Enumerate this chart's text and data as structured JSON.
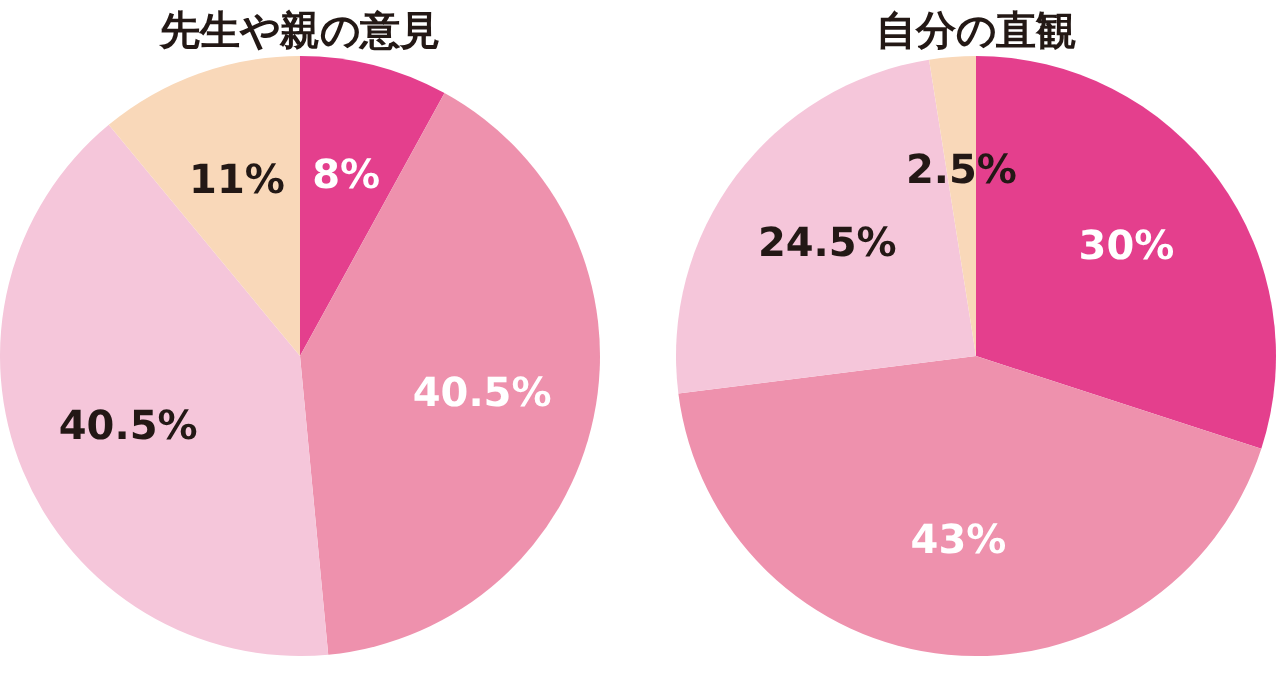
{
  "chart_data": [
    {
      "type": "pie",
      "title": "先生や親の意見",
      "categories": [
        null,
        null,
        null,
        null
      ],
      "values": [
        8,
        40.5,
        40.5,
        11
      ],
      "value_labels": [
        "8%",
        "40.5%",
        "40.5%",
        "11%"
      ],
      "colors": [
        "#e43f8d",
        "#ee91ad",
        "#f5c6da",
        "#f9d8b9"
      ],
      "legend": false
    },
    {
      "type": "pie",
      "title": "自分の直観",
      "categories": [
        null,
        null,
        null,
        null
      ],
      "values": [
        30,
        43,
        24.5,
        2.5
      ],
      "value_labels": [
        "30%",
        "43%",
        "24.5%",
        "2.5%"
      ],
      "colors": [
        "#e43f8d",
        "#ee91ad",
        "#f5c6da",
        "#f9d8b9"
      ],
      "legend": false
    }
  ]
}
